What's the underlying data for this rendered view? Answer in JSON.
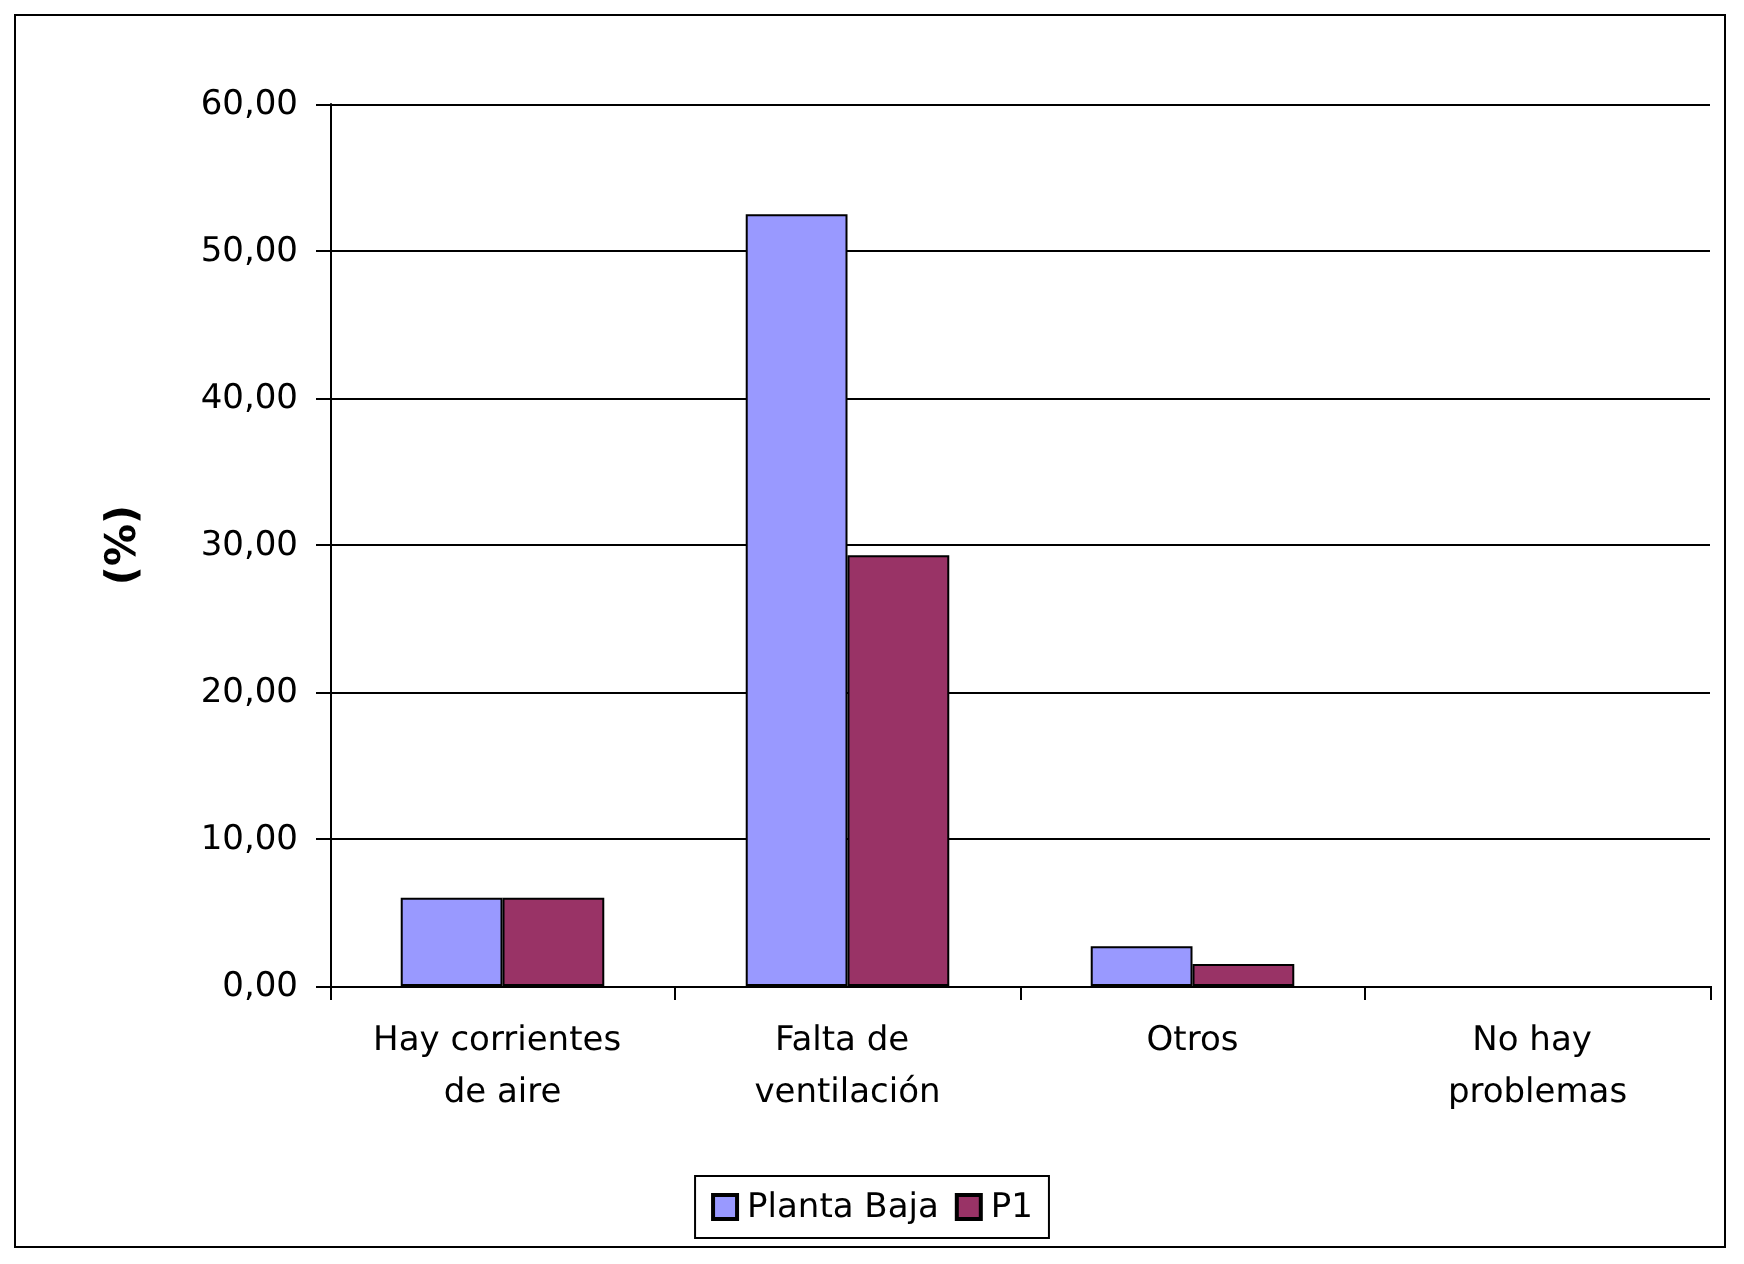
{
  "chart_data": {
    "type": "bar",
    "ylabel": "(%)",
    "categories": [
      "Hay corrientes de aire",
      "Falta de ventilación",
      "Otros",
      "No hay problemas"
    ],
    "series": [
      {
        "name": "Planta Baja",
        "color": "#9999ff",
        "values": [
          6.0,
          52.5,
          2.7,
          0
        ]
      },
      {
        "name": "P1",
        "color": "#993366",
        "values": [
          6.0,
          29.3,
          1.5,
          0
        ]
      }
    ],
    "ylim": [
      0,
      60
    ],
    "yticks": [
      {
        "value": 0,
        "label": "0,00"
      },
      {
        "value": 10,
        "label": "10,00"
      },
      {
        "value": 20,
        "label": "20,00"
      },
      {
        "value": 30,
        "label": "30,00"
      },
      {
        "value": 40,
        "label": "40,00"
      },
      {
        "value": 50,
        "label": "50,00"
      },
      {
        "value": 60,
        "label": "60,00"
      }
    ],
    "grid": "y",
    "legend": "bottom"
  }
}
